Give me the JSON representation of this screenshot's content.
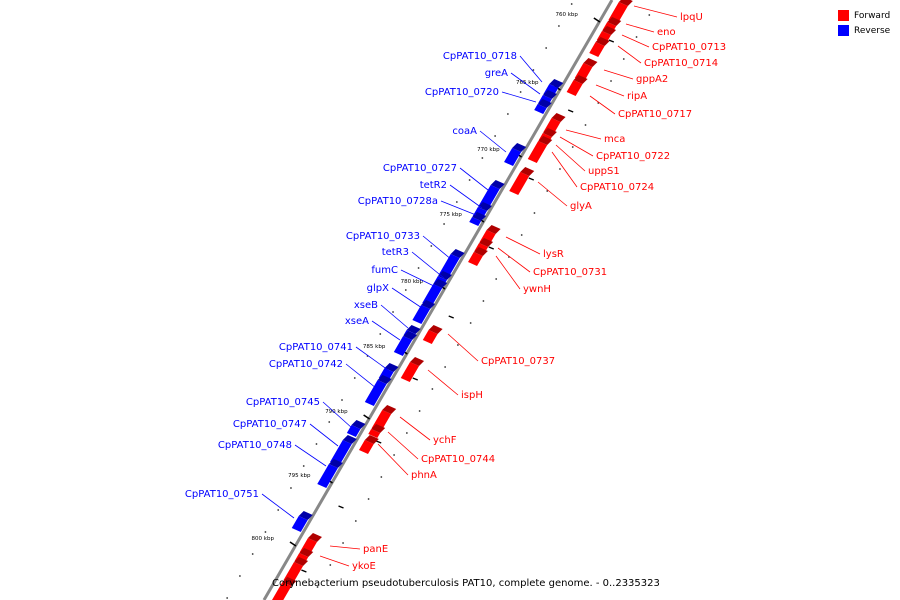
{
  "legend": {
    "forward_label": "Forward",
    "reverse_label": "Reverse",
    "forward_color": "#ff0000",
    "reverse_color": "#0000ff"
  },
  "caption": "Corynebacterium pseudotuberculosis PAT10, complete genome. - 0..2335323",
  "scale_labels": [
    "760 kbp",
    "765 kbp",
    "770 kbp",
    "775 kbp",
    "780 kbp",
    "785 kbp",
    "790 kbp",
    "795 kbp",
    "800 kbp"
  ],
  "forward_genes": [
    "lpqU",
    "eno",
    "CpPAT10_0713",
    "CpPAT10_0714",
    "gppA2",
    "ripA",
    "CpPAT10_0717",
    "mca",
    "CpPAT10_0722",
    "uppS1",
    "CpPAT10_0724",
    "glyA",
    "lysR",
    "CpPAT10_0731",
    "ywnH",
    "CpPAT10_0737",
    "ispH",
    "ychF",
    "CpPAT10_0744",
    "phnA",
    "panE",
    "ykoE"
  ],
  "reverse_genes": [
    "CpPAT10_0718",
    "greA",
    "CpPAT10_0720",
    "coaA",
    "CpPAT10_0727",
    "tetR2",
    "CpPAT10_0728a",
    "CpPAT10_0733",
    "tetR3",
    "fumC",
    "glpX",
    "xseB",
    "xseA",
    "CpPAT10_0741",
    "CpPAT10_0742",
    "CpPAT10_0745",
    "CpPAT10_0747",
    "CpPAT10_0748",
    "CpPAT10_0751"
  ]
}
